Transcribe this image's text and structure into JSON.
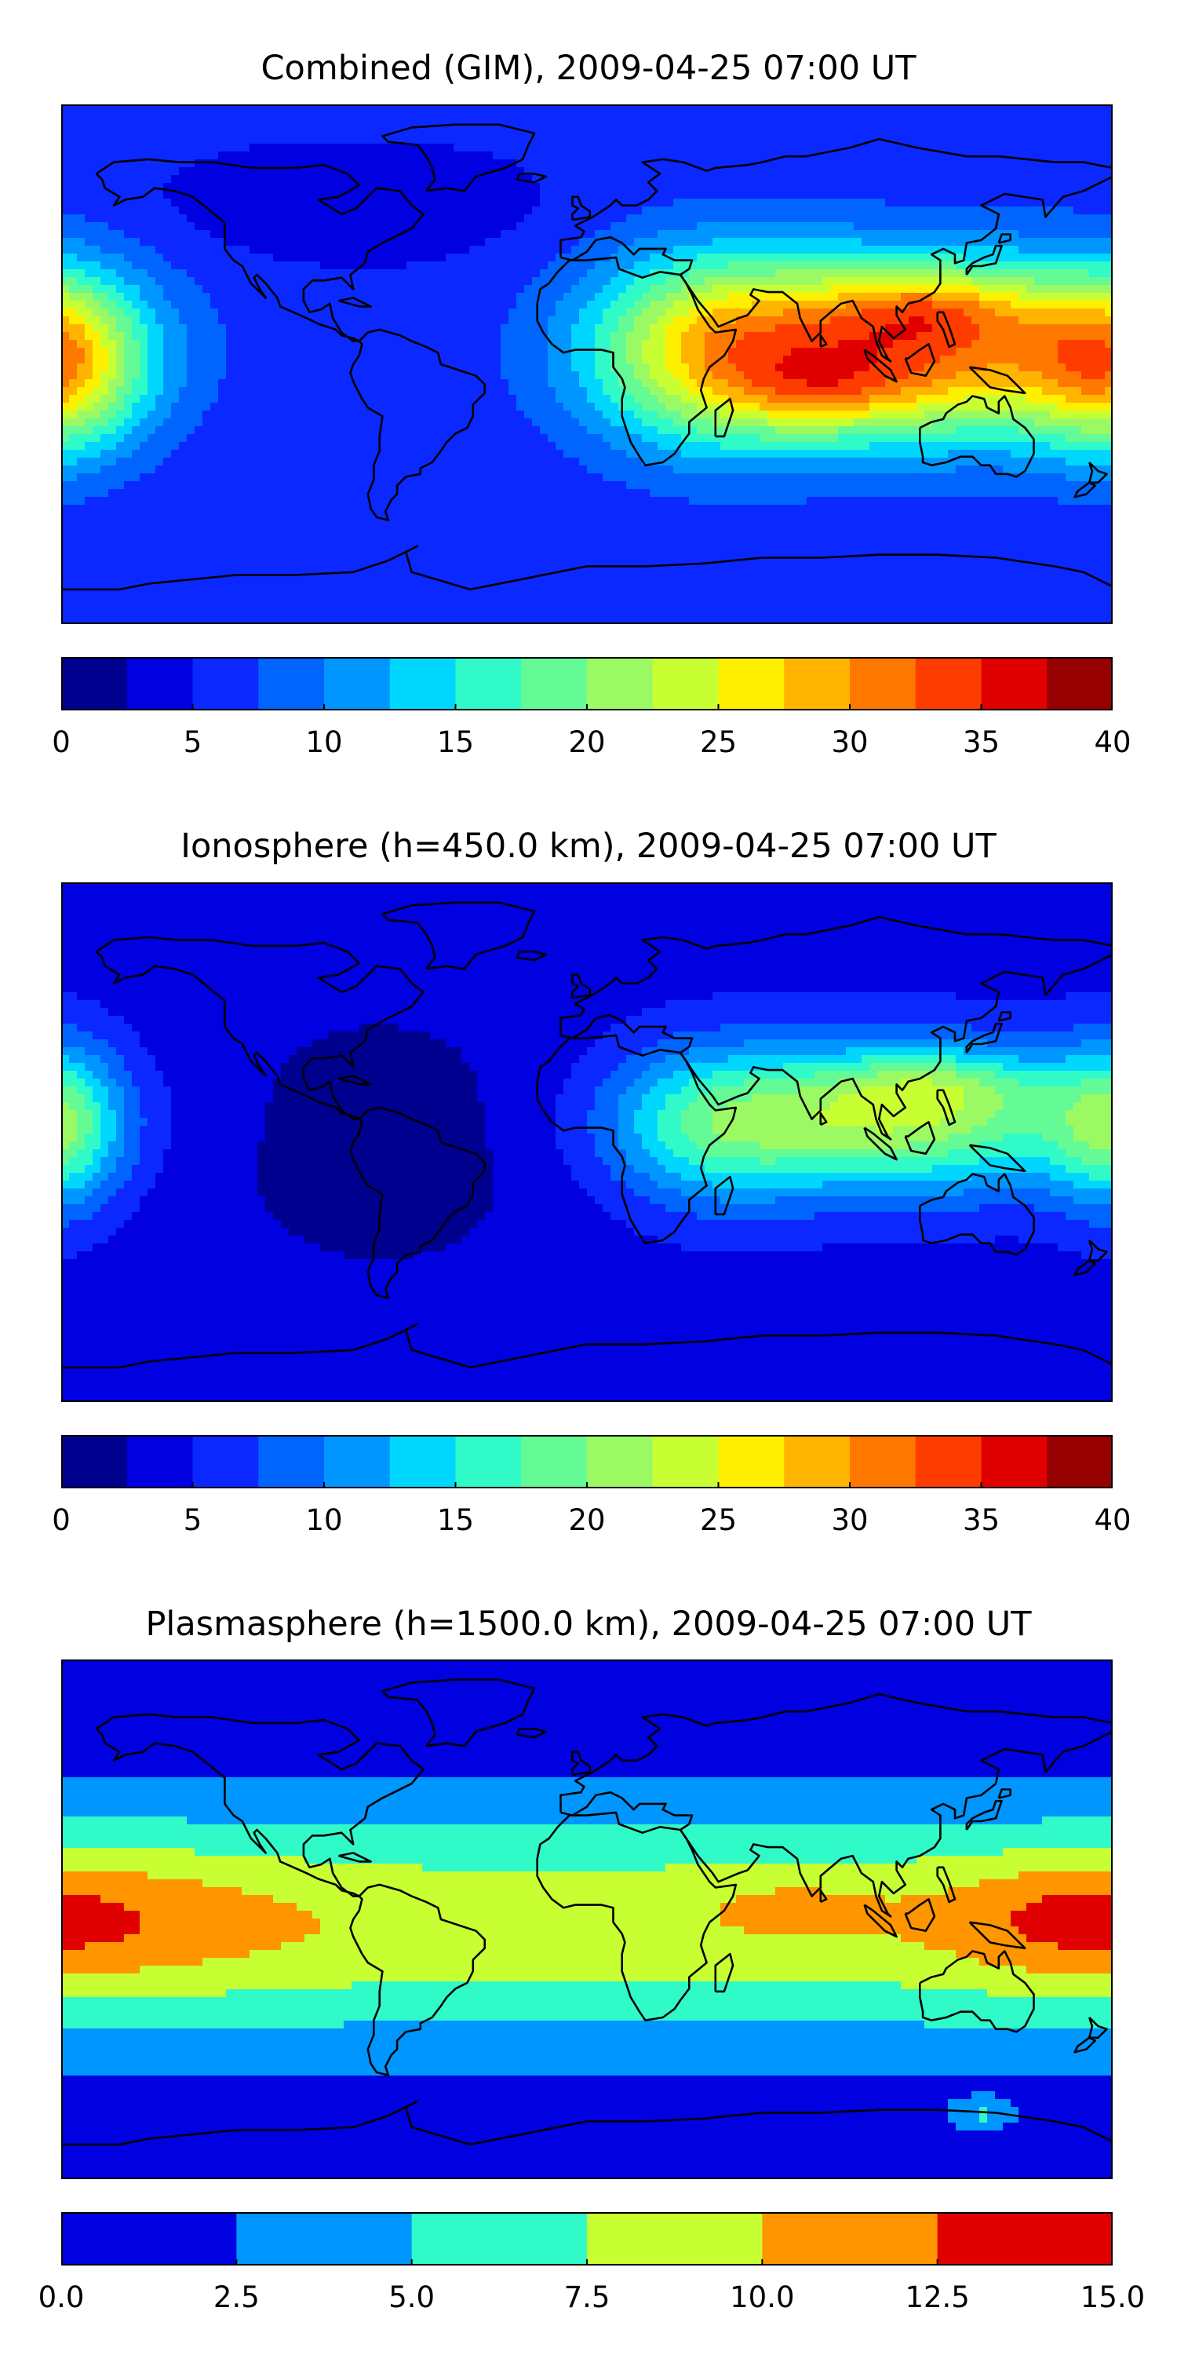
{
  "figure": {
    "panels": [
      {
        "title": "Combined (GIM), 2009-04-25 07:00 UT",
        "colorbar": {
          "ticks": [
            "0",
            "5",
            "10",
            "15",
            "20",
            "25",
            "30",
            "35",
            "40"
          ],
          "vmin": 0,
          "vmax": 40,
          "step": 2.5,
          "colors": [
            "#00008f",
            "#0000e0",
            "#0a28ff",
            "#0064ff",
            "#0096ff",
            "#00d7ff",
            "#30fac8",
            "#64fa96",
            "#9bfa64",
            "#c8ff32",
            "#fff000",
            "#ffb400",
            "#ff7800",
            "#ff3c00",
            "#e10000",
            "#960000"
          ]
        },
        "map_field": {
          "background_level": 5.5,
          "features": [
            {
              "name": "asia-crest",
              "lon": 108,
              "lat": 5,
              "amplitude": 27,
              "lon_spread": 55,
              "lat_spread": 22
            },
            {
              "name": "asia-peak-north",
              "lon": 120,
              "lat": 20,
              "amplitude": 6,
              "lon_spread": 22,
              "lat_spread": 8
            },
            {
              "name": "indian-crest",
              "lon": 80,
              "lat": -10,
              "amplitude": 5,
              "lon_spread": 20,
              "lat_spread": 8
            },
            {
              "name": "africa-tail",
              "lon": 40,
              "lat": 5,
              "amplitude": 12,
              "lon_spread": 30,
              "lat_spread": 25
            },
            {
              "name": "pacific-west-edge",
              "lon": -180,
              "lat": 0,
              "amplitude": 16,
              "lon_spread": 20,
              "lat_spread": 22
            },
            {
              "name": "north-low",
              "lon": -80,
              "lat": 55,
              "amplitude": -3,
              "lon_spread": 40,
              "lat_spread": 12
            }
          ]
        }
      },
      {
        "title": "Ionosphere  (h=450.0 km), 2009-04-25 07:00 UT",
        "colorbar": {
          "ticks": [
            "0",
            "5",
            "10",
            "15",
            "20",
            "25",
            "30",
            "35",
            "40"
          ],
          "vmin": 0,
          "vmax": 40,
          "step": 2.5,
          "colors": [
            "#00008f",
            "#0000e0",
            "#0a28ff",
            "#0064ff",
            "#0096ff",
            "#00d7ff",
            "#30fac8",
            "#64fa96",
            "#9bfa64",
            "#c8ff32",
            "#fff000",
            "#ffb400",
            "#ff7800",
            "#ff3c00",
            "#e10000",
            "#960000"
          ]
        },
        "map_field": {
          "background_level": 4.0,
          "features": [
            {
              "name": "asia-crest",
              "lon": 105,
              "lat": 8,
              "amplitude": 18,
              "lon_spread": 50,
              "lat_spread": 18
            },
            {
              "name": "asia-peak-north",
              "lon": 120,
              "lat": 20,
              "amplitude": 5,
              "lon_spread": 25,
              "lat_spread": 8
            },
            {
              "name": "africa-tail",
              "lon": 40,
              "lat": 5,
              "amplitude": 8,
              "lon_spread": 25,
              "lat_spread": 20
            },
            {
              "name": "pacific-west-edge",
              "lon": -180,
              "lat": 5,
              "amplitude": 12,
              "lon_spread": 15,
              "lat_spread": 20
            },
            {
              "name": "americas-low",
              "lon": -70,
              "lat": 0,
              "amplitude": -2.5,
              "lon_spread": 50,
              "lat_spread": 40
            }
          ]
        }
      },
      {
        "title": "Plasmasphere (h=1500.0 km), 2009-04-25 07:00 UT",
        "colorbar": {
          "ticks": [
            "0.0",
            "2.5",
            "5.0",
            "7.5",
            "10.0",
            "12.5",
            "15.0"
          ],
          "vmin": 0,
          "vmax": 15,
          "step": 2.5,
          "colors": [
            "#0000e0",
            "#0096ff",
            "#30fac8",
            "#c8ff32",
            "#ff9600",
            "#e10000"
          ]
        },
        "map_field": {
          "background_level": 0.5,
          "features": [
            {
              "name": "equatorial-band",
              "lon": 0,
              "lat": -2,
              "amplitude": 8.5,
              "lon_spread": 10000,
              "lat_spread": 30
            },
            {
              "name": "pacific-east-max",
              "lon": -160,
              "lat": 0,
              "amplitude": 2.6,
              "lon_spread": 50,
              "lat_spread": 18
            },
            {
              "name": "pacific-west-max",
              "lon": 165,
              "lat": 0,
              "amplitude": 2.6,
              "lon_spread": 30,
              "lat_spread": 14
            },
            {
              "name": "indian-max",
              "lon": 70,
              "lat": 5,
              "amplitude": 1.8,
              "lon_spread": 25,
              "lat_spread": 10
            },
            {
              "name": "south-island",
              "lon": 135,
              "lat": -68,
              "amplitude": 4,
              "lon_spread": 8,
              "lat_spread": 4
            }
          ]
        }
      }
    ]
  }
}
